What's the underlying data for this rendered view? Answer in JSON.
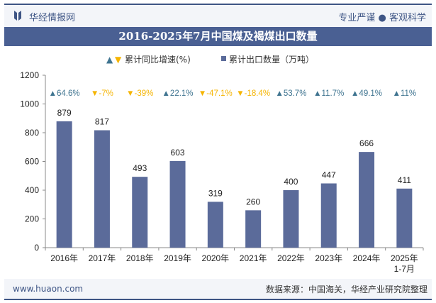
{
  "header": {
    "brand": "华经情报网",
    "slogan": "专业严谨 ● 客观科学"
  },
  "footer": {
    "site": "www.huaon.com",
    "source": "数据来源：中国海关，华经产业研究院整理"
  },
  "colors": {
    "bar": "#5b6b9a",
    "up": "#3f7490",
    "down": "#f5b400",
    "title_bg": "#4a6093"
  },
  "chart_data": {
    "type": "bar",
    "title": "2016-2025年7月中国煤及褐煤出口数量",
    "legend": [
      "累计同比增速(%)",
      "累计出口数量（万吨）"
    ],
    "categories": [
      "2016年",
      "2017年",
      "2018年",
      "2019年",
      "2020年",
      "2021年",
      "2022年",
      "2023年",
      "2024年",
      "2025年\n1-7月"
    ],
    "values": [
      879,
      817,
      493,
      603,
      319,
      260,
      400,
      447,
      666,
      411
    ],
    "growth": [
      64.6,
      -7,
      -39,
      22.1,
      -47.1,
      -18.4,
      53.7,
      11.7,
      49.1,
      11
    ],
    "growth_labels": [
      "64.6%",
      "-7%",
      "-39%",
      "22.1%",
      "-47.1%",
      "-18.4%",
      "53.7%",
      "11.7%",
      "49.1%",
      "11%"
    ],
    "yticks": [
      0,
      200,
      400,
      600,
      800,
      1000,
      1200
    ],
    "ylim": [
      0,
      1200
    ]
  }
}
